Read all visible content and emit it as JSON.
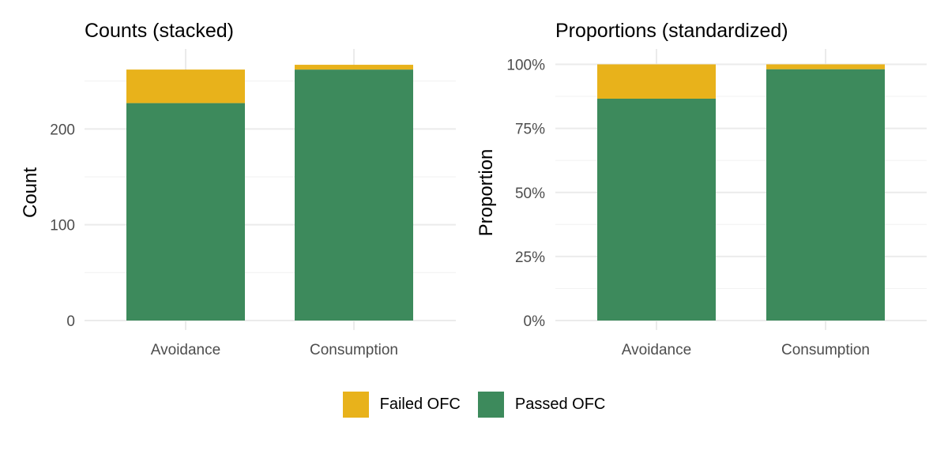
{
  "colors": {
    "failed": "#E8B21B",
    "passed": "#3D8A5C",
    "grid": "#ebebeb"
  },
  "legend": {
    "items": [
      {
        "key": "failed",
        "label": "Failed OFC"
      },
      {
        "key": "passed",
        "label": "Passed OFC"
      }
    ]
  },
  "chart_data": [
    {
      "type": "bar",
      "stacked": true,
      "title": "Counts (stacked)",
      "xlabel": "",
      "ylabel": "Count",
      "categories": [
        "Avoidance",
        "Consumption"
      ],
      "series": [
        {
          "name": "Passed OFC",
          "values": [
            227,
            262
          ]
        },
        {
          "name": "Failed OFC",
          "values": [
            35,
            5
          ]
        }
      ],
      "ylim": [
        0,
        270
      ],
      "yticks": [
        0,
        100,
        200
      ],
      "ytick_labels": [
        "0",
        "100",
        "200"
      ],
      "grid": true
    },
    {
      "type": "bar",
      "stacked": true,
      "title": "Proportions (standardized)",
      "xlabel": "",
      "ylabel": "Proportion",
      "categories": [
        "Avoidance",
        "Consumption"
      ],
      "series": [
        {
          "name": "Passed OFC",
          "values": [
            0.866,
            0.981
          ]
        },
        {
          "name": "Failed OFC",
          "values": [
            0.134,
            0.019
          ]
        }
      ],
      "ylim": [
        0,
        1.0
      ],
      "yticks": [
        0,
        0.25,
        0.5,
        0.75,
        1.0
      ],
      "ytick_labels": [
        "0%",
        "25%",
        "50%",
        "75%",
        "100%"
      ],
      "grid": true
    }
  ]
}
